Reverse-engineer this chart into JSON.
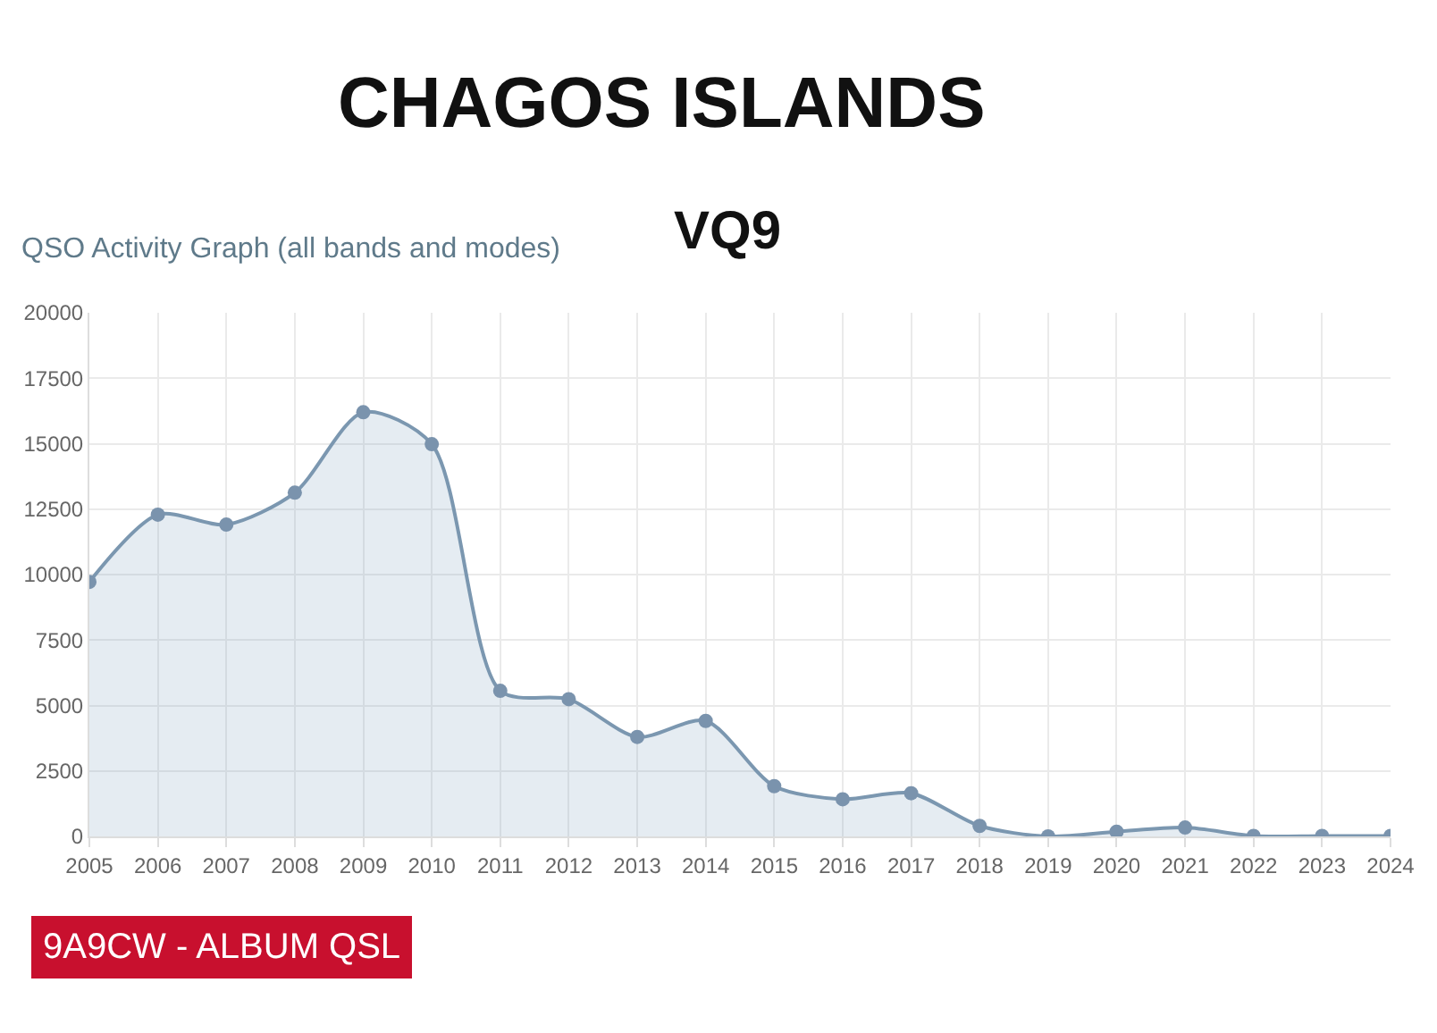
{
  "chart_data": {
    "type": "area",
    "title": "CHAGOS ISLANDS",
    "subtitle": "VQ9",
    "annotations": [
      "QSO Activity Graph (all bands and modes)",
      "9A9CW - ALBUM QSL"
    ],
    "categories": [
      "2005",
      "2006",
      "2007",
      "2008",
      "2009",
      "2010",
      "2011",
      "2012",
      "2013",
      "2014",
      "2015",
      "2016",
      "2017",
      "2018",
      "2019",
      "2020",
      "2021",
      "2022",
      "2023",
      "2024"
    ],
    "series": [
      {
        "color": "#7b97b0",
        "values": [
          9720,
          12290,
          11910,
          13130,
          16200,
          14980,
          5560,
          5240,
          3800,
          4410,
          1920,
          1420,
          1650,
          400,
          0,
          180,
          340,
          20,
          20,
          20
        ]
      }
    ],
    "ylim": [
      0,
      20000
    ],
    "yticks": [
      0,
      2500,
      5000,
      7500,
      10000,
      12500,
      15000,
      17500,
      20000
    ],
    "grid": true,
    "legend": false,
    "marker": "circle",
    "line_style": "solid"
  }
}
